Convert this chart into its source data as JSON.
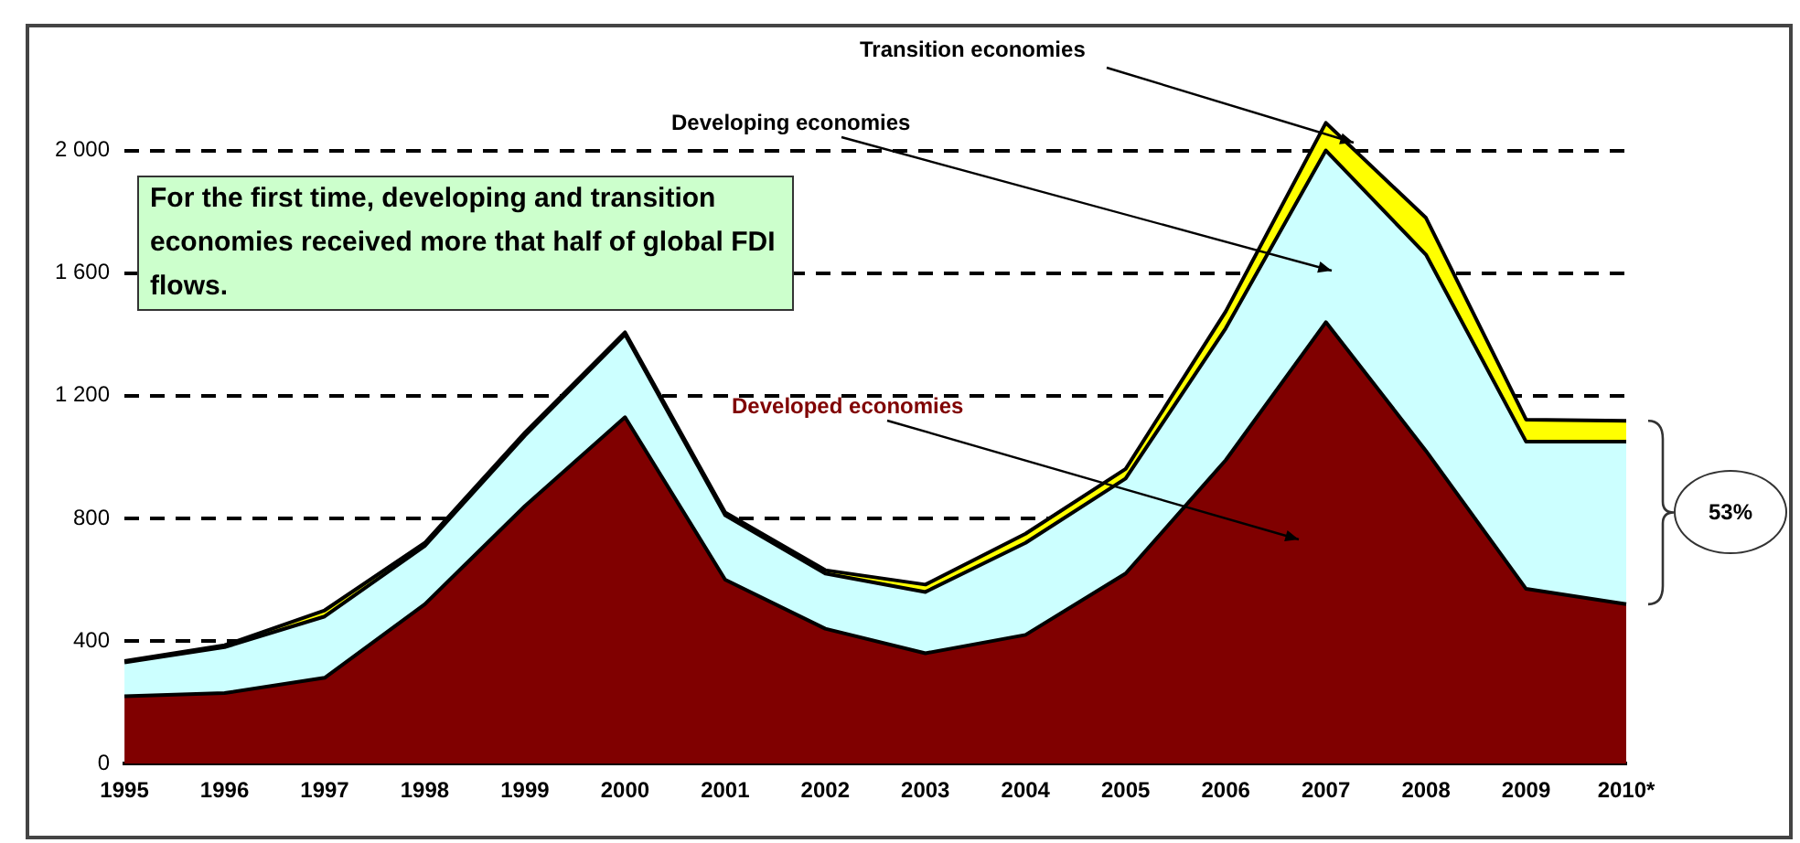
{
  "chart_data": {
    "type": "area",
    "stacked": true,
    "categories": [
      "1995",
      "1996",
      "1997",
      "1998",
      "1999",
      "2000",
      "2001",
      "2002",
      "2003",
      "2004",
      "2005",
      "2006",
      "2007",
      "2008",
      "2009",
      "2010*"
    ],
    "series": [
      {
        "name": "Developed economies",
        "color": "#800000",
        "values": [
          220,
          230,
          280,
          520,
          840,
          1130,
          600,
          440,
          360,
          420,
          620,
          990,
          1440,
          1020,
          570,
          520
        ]
      },
      {
        "name": "Developing economies",
        "color": "#ccffff",
        "values": [
          110,
          150,
          200,
          190,
          230,
          270,
          210,
          180,
          200,
          300,
          310,
          430,
          560,
          640,
          480,
          530
        ]
      },
      {
        "name": "Transition economies",
        "color": "#ffff00",
        "values": [
          5,
          6,
          20,
          10,
          10,
          7,
          9,
          11,
          24,
          30,
          31,
          55,
          90,
          120,
          72,
          68
        ]
      }
    ],
    "ylim": [
      0,
      2400
    ],
    "yticks": [
      0,
      {
        "value": 400,
        "label": "400"
      },
      {
        "value": 800,
        "label": "800"
      },
      {
        "value": 1200,
        "label": "1 200"
      },
      {
        "value": 1600,
        "label": "1 600"
      },
      {
        "value": 2000,
        "label": "2 000"
      }
    ],
    "grid": "y",
    "legend": false,
    "annotations": [
      "For the first time, developing and transition economies received more that half of global FDI flows.",
      "53%"
    ]
  }
}
